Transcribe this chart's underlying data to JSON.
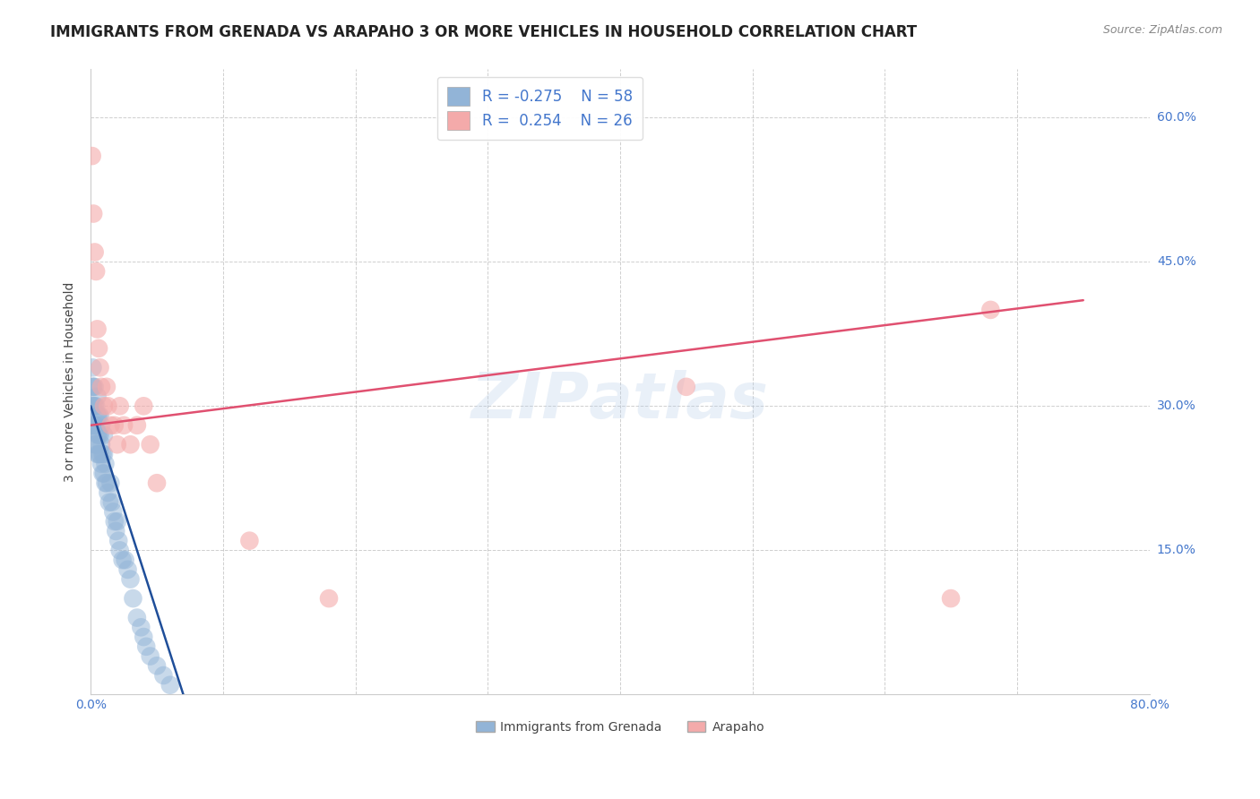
{
  "title": "IMMIGRANTS FROM GRENADA VS ARAPAHO 3 OR MORE VEHICLES IN HOUSEHOLD CORRELATION CHART",
  "source": "Source: ZipAtlas.com",
  "ylabel": "3 or more Vehicles in Household",
  "xlabel_blue": "Immigrants from Grenada",
  "xlabel_pink": "Arapaho",
  "xlim": [
    0.0,
    0.8
  ],
  "ylim": [
    0.0,
    0.65
  ],
  "xticks": [
    0.0,
    0.1,
    0.2,
    0.3,
    0.4,
    0.5,
    0.6,
    0.7,
    0.8
  ],
  "xticklabels": [
    "0.0%",
    "",
    "",
    "",
    "",
    "",
    "",
    "",
    "80.0%"
  ],
  "yticks": [
    0.0,
    0.15,
    0.3,
    0.45,
    0.6
  ],
  "yticklabels": [
    "",
    "15.0%",
    "30.0%",
    "45.0%",
    "60.0%"
  ],
  "legend_R_blue": "-0.275",
  "legend_N_blue": "58",
  "legend_R_pink": "0.254",
  "legend_N_pink": "26",
  "blue_color": "#92B4D7",
  "pink_color": "#F4AAAA",
  "blue_line_color": "#1F4E99",
  "pink_line_color": "#E05070",
  "blue_scatter_x": [
    0.0005,
    0.001,
    0.0015,
    0.0015,
    0.002,
    0.002,
    0.002,
    0.003,
    0.003,
    0.003,
    0.003,
    0.004,
    0.004,
    0.004,
    0.005,
    0.005,
    0.005,
    0.005,
    0.006,
    0.006,
    0.006,
    0.007,
    0.007,
    0.007,
    0.008,
    0.008,
    0.008,
    0.009,
    0.009,
    0.01,
    0.01,
    0.01,
    0.011,
    0.011,
    0.012,
    0.013,
    0.014,
    0.015,
    0.016,
    0.017,
    0.018,
    0.019,
    0.02,
    0.021,
    0.022,
    0.024,
    0.026,
    0.028,
    0.03,
    0.032,
    0.035,
    0.038,
    0.04,
    0.042,
    0.045,
    0.05,
    0.055,
    0.06
  ],
  "blue_scatter_y": [
    0.28,
    0.3,
    0.32,
    0.34,
    0.28,
    0.3,
    0.32,
    0.26,
    0.28,
    0.3,
    0.32,
    0.26,
    0.28,
    0.3,
    0.25,
    0.27,
    0.29,
    0.31,
    0.25,
    0.27,
    0.29,
    0.25,
    0.27,
    0.29,
    0.24,
    0.26,
    0.28,
    0.23,
    0.25,
    0.23,
    0.25,
    0.27,
    0.22,
    0.24,
    0.22,
    0.21,
    0.2,
    0.22,
    0.2,
    0.19,
    0.18,
    0.17,
    0.18,
    0.16,
    0.15,
    0.14,
    0.14,
    0.13,
    0.12,
    0.1,
    0.08,
    0.07,
    0.06,
    0.05,
    0.04,
    0.03,
    0.02,
    0.01
  ],
  "pink_scatter_x": [
    0.001,
    0.002,
    0.003,
    0.004,
    0.005,
    0.006,
    0.007,
    0.008,
    0.01,
    0.012,
    0.013,
    0.015,
    0.018,
    0.02,
    0.022,
    0.025,
    0.03,
    0.035,
    0.04,
    0.045,
    0.05,
    0.12,
    0.18,
    0.45,
    0.65,
    0.68
  ],
  "pink_scatter_y": [
    0.56,
    0.5,
    0.46,
    0.44,
    0.38,
    0.36,
    0.34,
    0.32,
    0.3,
    0.32,
    0.3,
    0.28,
    0.28,
    0.26,
    0.3,
    0.28,
    0.26,
    0.28,
    0.3,
    0.26,
    0.22,
    0.16,
    0.1,
    0.32,
    0.1,
    0.4
  ],
  "blue_line_x_start": 0.0,
  "blue_line_y_start": 0.3,
  "blue_line_x_end": 0.07,
  "blue_line_y_end": 0.0,
  "pink_line_x_start": 0.0,
  "pink_line_y_start": 0.28,
  "pink_line_x_end": 0.75,
  "pink_line_y_end": 0.41,
  "background_color": "#FFFFFF",
  "grid_color": "#BBBBBB",
  "tick_color": "#4477CC",
  "title_color": "#222222",
  "title_fontsize": 12,
  "axis_label_fontsize": 10,
  "tick_fontsize": 10
}
